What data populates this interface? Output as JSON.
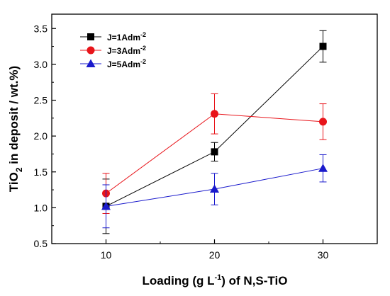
{
  "chart_data": {
    "type": "line",
    "xlabel_main": "Loading (g L",
    "xlabel_sup": "-1",
    "xlabel_tail": ") of N,S-TiO",
    "ylabel_main": "TiO",
    "ylabel_sub": "2",
    "ylabel_tail": " in deposit / wt.%)",
    "x": [
      10,
      20,
      30
    ],
    "xlim": [
      5,
      35
    ],
    "ylim": [
      0.5,
      3.7
    ],
    "xticks": [
      "10",
      "20",
      "30"
    ],
    "yticks": [
      "0.5",
      "1.0",
      "1.5",
      "2.0",
      "2.5",
      "3.0",
      "3.5"
    ],
    "grid": false,
    "legend_position": "top-left",
    "series": [
      {
        "name": "J=1Adm",
        "name_sup": "-2",
        "color": "#000000",
        "marker": "square",
        "values": [
          1.02,
          1.78,
          3.25
        ],
        "errors": [
          0.38,
          0.13,
          0.22
        ]
      },
      {
        "name": "J=3Adm",
        "name_sup": "-2",
        "color": "#e8141a",
        "marker": "circle",
        "values": [
          1.2,
          2.31,
          2.2
        ],
        "errors": [
          0.28,
          0.28,
          0.25
        ]
      },
      {
        "name": "J=5Adm",
        "name_sup": "-2",
        "color": "#1a1acc",
        "marker": "triangle",
        "values": [
          1.02,
          1.26,
          1.55
        ],
        "errors": [
          0.3,
          0.22,
          0.19
        ]
      }
    ]
  }
}
